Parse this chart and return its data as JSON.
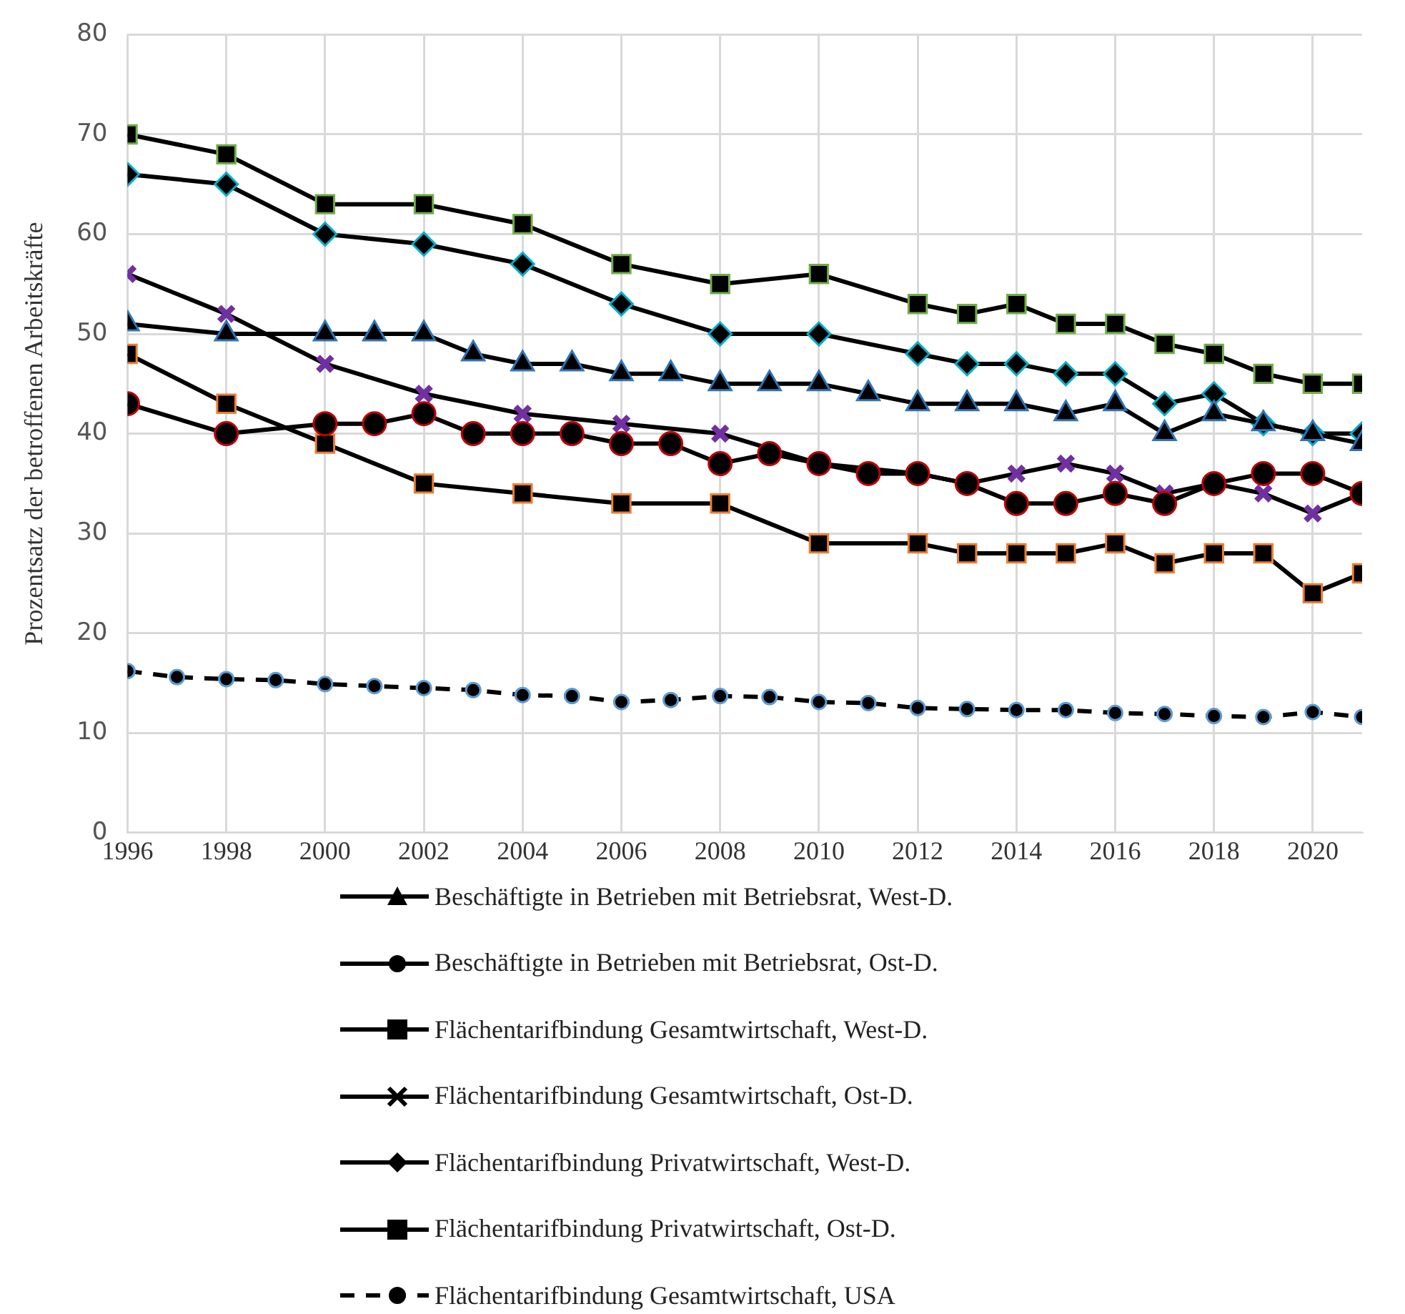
{
  "chart_data": {
    "type": "line",
    "ylabel": "Prozentsatz der betroffenen Arbeitskräfte",
    "xlim": [
      1996,
      2021
    ],
    "xticks": [
      1996,
      1998,
      2000,
      2002,
      2004,
      2006,
      2008,
      2010,
      2012,
      2014,
      2016,
      2018,
      2020
    ],
    "ylim": [
      0,
      80
    ],
    "yticks": [
      0,
      10,
      20,
      30,
      40,
      50,
      60,
      70,
      80
    ],
    "grid": true,
    "legend": "bottom",
    "series": [
      {
        "name": "Beschäftigte in Betrieben mit Betriebsrat, West-D.",
        "color": "#2e75b6",
        "marker": "triangle",
        "x": [
          1996,
          1998,
          2000,
          2001,
          2002,
          2003,
          2004,
          2005,
          2006,
          2007,
          2008,
          2009,
          2010,
          2011,
          2012,
          2013,
          2014,
          2015,
          2016,
          2017,
          2018,
          2019,
          2020,
          2021
        ],
        "values": [
          51,
          50,
          50,
          50,
          50,
          48,
          47,
          47,
          46,
          46,
          45,
          45,
          45,
          44,
          43,
          43,
          43,
          42,
          43,
          40,
          42,
          41,
          40,
          39
        ]
      },
      {
        "name": "Beschäftigte in Betrieben mit Betriebsrat, Ost-D.",
        "color": "#c00000",
        "marker": "circle",
        "x": [
          1996,
          1998,
          2000,
          2001,
          2002,
          2003,
          2004,
          2005,
          2006,
          2007,
          2008,
          2009,
          2010,
          2011,
          2012,
          2013,
          2014,
          2015,
          2016,
          2017,
          2018,
          2019,
          2020,
          2021
        ],
        "values": [
          43,
          40,
          41,
          41,
          42,
          40,
          40,
          40,
          39,
          39,
          37,
          38,
          37,
          36,
          36,
          35,
          33,
          33,
          34,
          33,
          35,
          36,
          36,
          34
        ]
      },
      {
        "name": "Flächentarifbindung Gesamtwirtschaft, West-D.",
        "color": "#70ad47",
        "marker": "square",
        "x": [
          1996,
          1998,
          2000,
          2002,
          2004,
          2006,
          2008,
          2010,
          2012,
          2013,
          2014,
          2015,
          2016,
          2017,
          2018,
          2019,
          2020,
          2021
        ],
        "values": [
          70,
          68,
          63,
          63,
          61,
          57,
          55,
          56,
          53,
          52,
          53,
          51,
          51,
          49,
          48,
          46,
          45,
          45
        ]
      },
      {
        "name": "Flächentarifbindung Gesamtwirtschaft, Ost-D.",
        "color": "#7030a0",
        "marker": "cross",
        "x": [
          1996,
          1998,
          2000,
          2002,
          2004,
          2006,
          2008,
          2010,
          2012,
          2013,
          2014,
          2015,
          2016,
          2017,
          2018,
          2019,
          2020,
          2021
        ],
        "values": [
          56,
          52,
          47,
          44,
          42,
          41,
          40,
          37,
          36,
          35,
          36,
          37,
          36,
          34,
          35,
          34,
          32,
          34
        ]
      },
      {
        "name": "Flächentarifbindung Privatwirtschaft, West-D.",
        "color": "#00b0c8",
        "marker": "diamond",
        "x": [
          1996,
          1998,
          2000,
          2002,
          2004,
          2006,
          2008,
          2010,
          2012,
          2013,
          2014,
          2015,
          2016,
          2017,
          2018,
          2019,
          2020,
          2021
        ],
        "values": [
          66,
          65,
          60,
          59,
          57,
          53,
          50,
          50,
          48,
          47,
          47,
          46,
          46,
          43,
          44,
          41,
          40,
          40
        ]
      },
      {
        "name": "Flächentarifbindung Privatwirtschaft, Ost-D.",
        "color": "#ed7d31",
        "marker": "square",
        "x": [
          1996,
          1998,
          2000,
          2002,
          2004,
          2006,
          2008,
          2010,
          2012,
          2013,
          2014,
          2015,
          2016,
          2017,
          2018,
          2019,
          2020,
          2021
        ],
        "values": [
          48,
          43,
          39,
          35,
          34,
          33,
          33,
          29,
          29,
          28,
          28,
          28,
          29,
          27,
          28,
          28,
          24,
          26
        ]
      },
      {
        "name": "Flächentarifbindung Gesamtwirtschaft, USA",
        "color": "#5b9bd5",
        "marker": "circle",
        "line_style": "dashed",
        "x": [
          1996,
          1997,
          1998,
          1999,
          2000,
          2001,
          2002,
          2003,
          2004,
          2005,
          2006,
          2007,
          2008,
          2009,
          2010,
          2011,
          2012,
          2013,
          2014,
          2015,
          2016,
          2017,
          2018,
          2019,
          2020,
          2021
        ],
        "values": [
          16.2,
          15.6,
          15.4,
          15.3,
          14.9,
          14.7,
          14.5,
          14.3,
          13.8,
          13.7,
          13.1,
          13.3,
          13.7,
          13.6,
          13.1,
          13.0,
          12.5,
          12.4,
          12.3,
          12.3,
          12.0,
          11.9,
          11.7,
          11.6,
          12.1,
          11.6
        ]
      }
    ]
  }
}
